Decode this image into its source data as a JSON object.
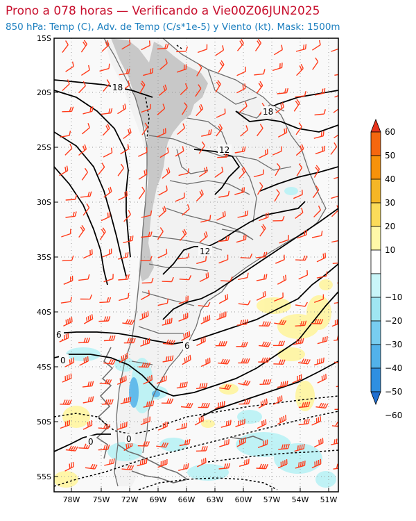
{
  "header": {
    "title": "Prono a 078 horas — Verificando a Vie00Z06JUN2025",
    "subtitle": "850 hPa: Temp (C), Adv. de Temp (C/s*1e-5) y Viento (kt). Mask: 1500m"
  },
  "map": {
    "lat_labels": [
      "15S",
      "20S",
      "25S",
      "30S",
      "35S",
      "40S",
      "45S",
      "50S",
      "55S"
    ],
    "lon_labels": [
      "78W",
      "75W",
      "72W",
      "69W",
      "66W",
      "63W",
      "60W",
      "57W",
      "54W",
      "51W"
    ],
    "contour_labels": [
      "18",
      "18",
      "12",
      "12",
      "6",
      "6",
      "0",
      "0",
      "0"
    ],
    "colors": {
      "mask": "#c8c8c8",
      "land": "#f2f2f2",
      "coast": "#6e6e6e",
      "contour": "#000000",
      "wind_barb": "#ff3b1a",
      "warm_adv": "#fff5a0",
      "cold_adv": "#b9f2f5"
    }
  },
  "colorbar": {
    "labels": [
      "60",
      "50",
      "40",
      "30",
      "20",
      "10",
      "−10",
      "−20",
      "−30",
      "−40",
      "−50",
      "−60"
    ],
    "colors": [
      "#e8341c",
      "#f5670f",
      "#f7920b",
      "#f5b626",
      "#fbdb5a",
      "#fff8a8",
      "#ffffff",
      "#c9f6f9",
      "#9fe6f2",
      "#78cdf0",
      "#52b2ea",
      "#2f8fe0",
      "#1f6fd1"
    ]
  }
}
